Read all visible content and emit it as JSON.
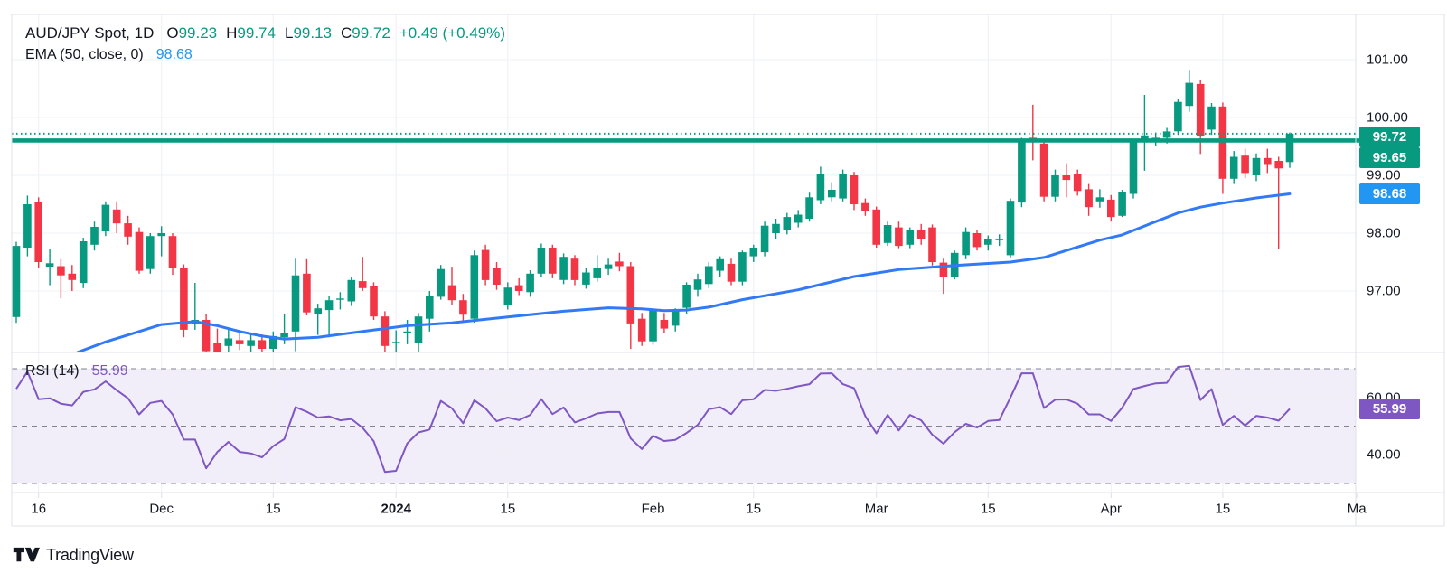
{
  "header": {
    "symbol_title": "AUD/JPY Spot, 1D",
    "ohlc": {
      "o_label": "O",
      "o": "99.23",
      "h_label": "H",
      "h": "99.74",
      "l_label": "L",
      "l": "99.13",
      "c_label": "C",
      "c": "99.72",
      "change": "+0.49 (+0.49%)"
    },
    "ema_label": "EMA (50, close, 0)",
    "ema_value": "98.68"
  },
  "rsi_legend": {
    "label": "RSI (14)",
    "value": "55.99"
  },
  "price_scale": {
    "badges": {
      "last": "99.72",
      "level": "99.65",
      "ema": "98.68"
    }
  },
  "rsi_scale": {
    "badge": "55.99"
  },
  "logo": {
    "text": "TradingView"
  },
  "colors": {
    "up": "#089981",
    "down": "#f23645",
    "ema_line": "#3179f5",
    "level_line": "#089981",
    "rsi_line": "#7e57c2",
    "grid": "#eef0f4",
    "border": "#dde0e7",
    "dashed": "#7f8493"
  },
  "chart_data": [
    {
      "type": "candlestick",
      "title": "AUD/JPY Spot, 1D",
      "up_color": "#089981",
      "down_color": "#f23645",
      "ema_color": "#3179f5",
      "ylim": [
        95.9,
        101.8
      ],
      "y_ticks": [
        {
          "v": 101,
          "label": "101.00"
        },
        {
          "v": 100,
          "label": "100.00"
        },
        {
          "v": 99,
          "label": "99.00"
        },
        {
          "v": 98,
          "label": "98.00"
        },
        {
          "v": 97,
          "label": "97.00"
        }
      ],
      "x_ticks": [
        {
          "i": 2,
          "label": "16"
        },
        {
          "i": 13,
          "label": "Dec"
        },
        {
          "i": 23,
          "label": "15"
        },
        {
          "i": 34,
          "label": "2024",
          "bold": true
        },
        {
          "i": 44,
          "label": "15"
        },
        {
          "i": 57,
          "label": "Feb"
        },
        {
          "i": 66,
          "label": "15"
        },
        {
          "i": 77,
          "label": "Mar"
        },
        {
          "i": 87,
          "label": "15"
        },
        {
          "i": 98,
          "label": "Apr"
        },
        {
          "i": 108,
          "label": "15"
        },
        {
          "i": 120,
          "label": "Ma"
        }
      ],
      "levels": [
        {
          "value": 99.72,
          "style": "dotted",
          "color": "#089981"
        },
        {
          "value": 99.65,
          "style": "solid",
          "color": "#089981"
        }
      ],
      "candles": [
        [
          96.55,
          97.85,
          96.45,
          97.78
        ],
        [
          97.75,
          98.65,
          97.6,
          98.5
        ],
        [
          98.54,
          98.62,
          97.4,
          97.5
        ],
        [
          97.42,
          97.72,
          97.1,
          97.48
        ],
        [
          97.43,
          97.55,
          96.87,
          97.27
        ],
        [
          97.3,
          97.45,
          97.0,
          97.19
        ],
        [
          97.14,
          97.92,
          97.05,
          97.86
        ],
        [
          97.8,
          98.2,
          97.7,
          98.11
        ],
        [
          98.03,
          98.55,
          97.95,
          98.49
        ],
        [
          98.41,
          98.55,
          98.0,
          98.17
        ],
        [
          98.17,
          98.3,
          97.8,
          97.94
        ],
        [
          98.02,
          98.1,
          97.3,
          97.35
        ],
        [
          97.38,
          98.0,
          97.3,
          97.95
        ],
        [
          97.95,
          98.12,
          97.6,
          98.0
        ],
        [
          97.95,
          98.0,
          97.28,
          97.4
        ],
        [
          97.4,
          97.46,
          96.2,
          96.33
        ],
        [
          96.43,
          97.14,
          96.33,
          96.5
        ],
        [
          96.5,
          96.6,
          95.88,
          95.96
        ],
        [
          96.1,
          96.35,
          95.85,
          95.95
        ],
        [
          96.05,
          96.35,
          95.92,
          96.18
        ],
        [
          96.15,
          96.3,
          95.98,
          96.08
        ],
        [
          96.05,
          96.26,
          95.94,
          96.15
        ],
        [
          96.15,
          96.25,
          95.88,
          96.0
        ],
        [
          96.0,
          96.3,
          95.9,
          96.22
        ],
        [
          96.2,
          96.6,
          96.08,
          96.28
        ],
        [
          96.3,
          97.56,
          95.96,
          97.27
        ],
        [
          97.3,
          97.55,
          96.58,
          96.63
        ],
        [
          96.6,
          96.78,
          96.24,
          96.7
        ],
        [
          96.67,
          96.92,
          96.2,
          96.84
        ],
        [
          96.85,
          96.98,
          96.68,
          96.87
        ],
        [
          96.82,
          97.25,
          96.74,
          97.19
        ],
        [
          97.17,
          97.59,
          97.0,
          97.05
        ],
        [
          97.08,
          97.15,
          96.5,
          96.56
        ],
        [
          96.56,
          96.65,
          95.9,
          96.05
        ],
        [
          96.1,
          96.32,
          95.88,
          96.12
        ],
        [
          96.28,
          96.5,
          96.08,
          96.3
        ],
        [
          96.1,
          96.62,
          95.95,
          96.56
        ],
        [
          96.52,
          97.0,
          96.3,
          96.92
        ],
        [
          96.9,
          97.45,
          96.85,
          97.38
        ],
        [
          97.1,
          97.42,
          96.75,
          96.84
        ],
        [
          96.84,
          96.95,
          96.48,
          96.59
        ],
        [
          96.52,
          97.7,
          96.45,
          97.62
        ],
        [
          97.71,
          97.8,
          97.1,
          97.19
        ],
        [
          97.4,
          97.5,
          97.02,
          97.11
        ],
        [
          96.76,
          97.15,
          96.68,
          97.06
        ],
        [
          97.1,
          97.22,
          96.93,
          97.0
        ],
        [
          96.98,
          97.36,
          96.9,
          97.3
        ],
        [
          97.3,
          97.82,
          97.24,
          97.75
        ],
        [
          97.75,
          97.8,
          97.22,
          97.3
        ],
        [
          97.19,
          97.65,
          97.12,
          97.59
        ],
        [
          97.56,
          97.62,
          97.1,
          97.19
        ],
        [
          97.11,
          97.4,
          97.04,
          97.32
        ],
        [
          97.22,
          97.62,
          97.16,
          97.4
        ],
        [
          97.38,
          97.56,
          97.28,
          97.46
        ],
        [
          97.51,
          97.66,
          97.34,
          97.43
        ],
        [
          97.43,
          97.5,
          96.0,
          96.44
        ],
        [
          96.52,
          96.62,
          96.05,
          96.13
        ],
        [
          96.13,
          96.7,
          96.07,
          96.67
        ],
        [
          96.5,
          96.62,
          96.28,
          96.35
        ],
        [
          96.4,
          96.7,
          96.3,
          96.65
        ],
        [
          96.71,
          97.15,
          96.6,
          97.11
        ],
        [
          97.02,
          97.3,
          96.9,
          97.2
        ],
        [
          97.12,
          97.5,
          97.05,
          97.43
        ],
        [
          97.35,
          97.6,
          97.25,
          97.55
        ],
        [
          97.47,
          97.56,
          97.1,
          97.16
        ],
        [
          97.16,
          97.7,
          97.1,
          97.67
        ],
        [
          97.6,
          97.8,
          97.5,
          97.75
        ],
        [
          97.67,
          98.2,
          97.6,
          98.13
        ],
        [
          98.0,
          98.25,
          97.9,
          98.16
        ],
        [
          98.05,
          98.35,
          97.98,
          98.28
        ],
        [
          98.18,
          98.4,
          98.1,
          98.32
        ],
        [
          98.25,
          98.7,
          98.2,
          98.62
        ],
        [
          98.57,
          99.15,
          98.5,
          99.02
        ],
        [
          98.62,
          98.88,
          98.55,
          98.75
        ],
        [
          98.6,
          99.1,
          98.55,
          99.03
        ],
        [
          99.0,
          99.06,
          98.4,
          98.5
        ],
        [
          98.52,
          98.6,
          98.3,
          98.38
        ],
        [
          98.41,
          98.46,
          97.75,
          97.8
        ],
        [
          97.83,
          98.2,
          97.78,
          98.14
        ],
        [
          98.1,
          98.2,
          97.74,
          97.78
        ],
        [
          97.8,
          98.1,
          97.74,
          98.05
        ],
        [
          98.05,
          98.16,
          97.8,
          97.9
        ],
        [
          98.1,
          98.15,
          97.44,
          97.5
        ],
        [
          97.49,
          97.56,
          96.95,
          97.25
        ],
        [
          97.25,
          97.7,
          97.2,
          97.66
        ],
        [
          97.62,
          98.1,
          97.55,
          98.02
        ],
        [
          98.0,
          98.06,
          97.7,
          97.76
        ],
        [
          97.8,
          97.96,
          97.7,
          97.9
        ],
        [
          97.88,
          97.98,
          97.78,
          97.9
        ],
        [
          97.62,
          98.6,
          97.58,
          98.56
        ],
        [
          98.53,
          99.65,
          98.45,
          99.6
        ],
        [
          99.65,
          100.22,
          99.26,
          99.58
        ],
        [
          99.55,
          99.62,
          98.55,
          98.63
        ],
        [
          98.63,
          99.1,
          98.55,
          99.0
        ],
        [
          99.0,
          99.21,
          98.62,
          98.92
        ],
        [
          99.03,
          99.1,
          98.65,
          98.73
        ],
        [
          98.76,
          98.85,
          98.3,
          98.45
        ],
        [
          98.55,
          98.76,
          98.44,
          98.62
        ],
        [
          98.58,
          98.66,
          98.2,
          98.28
        ],
        [
          98.3,
          98.75,
          98.28,
          98.71
        ],
        [
          98.68,
          99.62,
          98.6,
          99.57
        ],
        [
          99.57,
          100.39,
          99.08,
          99.69
        ],
        [
          99.6,
          99.74,
          99.5,
          99.65
        ],
        [
          99.65,
          99.82,
          99.55,
          99.76
        ],
        [
          99.76,
          100.32,
          99.7,
          100.27
        ],
        [
          100.2,
          100.81,
          100.1,
          100.6
        ],
        [
          100.58,
          100.65,
          99.37,
          99.68
        ],
        [
          99.79,
          100.25,
          99.7,
          100.19
        ],
        [
          100.19,
          100.26,
          98.68,
          98.94
        ],
        [
          98.94,
          99.42,
          98.85,
          99.32
        ],
        [
          99.34,
          99.46,
          98.95,
          99.04
        ],
        [
          99.0,
          99.38,
          98.9,
          99.3
        ],
        [
          99.3,
          99.46,
          99.04,
          99.18
        ],
        [
          99.25,
          99.32,
          97.73,
          99.12
        ],
        [
          99.23,
          99.74,
          99.13,
          99.72
        ]
      ],
      "ema_name": "EMA (50, close, 0)",
      "ema_points": [
        [
          5.5,
          95.94
        ],
        [
          8,
          96.12
        ],
        [
          11,
          96.3
        ],
        [
          13,
          96.42
        ],
        [
          16,
          96.47
        ],
        [
          18,
          96.4
        ],
        [
          20,
          96.3
        ],
        [
          22,
          96.22
        ],
        [
          24,
          96.17
        ],
        [
          27,
          96.2
        ],
        [
          31,
          96.3
        ],
        [
          35,
          96.4
        ],
        [
          39,
          96.45
        ],
        [
          44,
          96.55
        ],
        [
          49,
          96.65
        ],
        [
          53,
          96.71
        ],
        [
          56,
          96.69
        ],
        [
          58,
          96.66
        ],
        [
          60,
          96.67
        ],
        [
          62,
          96.72
        ],
        [
          65,
          96.85
        ],
        [
          70,
          97.02
        ],
        [
          75,
          97.25
        ],
        [
          79,
          97.37
        ],
        [
          84,
          97.44
        ],
        [
          89,
          97.5
        ],
        [
          92,
          97.58
        ],
        [
          94,
          97.7
        ],
        [
          97,
          97.88
        ],
        [
          99,
          97.97
        ],
        [
          102,
          98.2
        ],
        [
          104,
          98.35
        ],
        [
          106,
          98.45
        ],
        [
          108,
          98.52
        ],
        [
          111,
          98.61
        ],
        [
          114,
          98.68
        ]
      ]
    },
    {
      "type": "line",
      "name": "RSI (14)",
      "color": "#7e57c2",
      "band": [
        30,
        70
      ],
      "band_fill": "rgba(126,87,194,0.10)",
      "dashed_levels": [
        70,
        50,
        30
      ],
      "ylim": [
        27,
        73
      ],
      "y_ticks": [
        {
          "v": 60,
          "label": "60.00"
        },
        {
          "v": 40,
          "label": "40.00"
        }
      ],
      "values": [
        63,
        69,
        59.4,
        59.7,
        57.8,
        57.2,
        61.9,
        62.8,
        65.6,
        62.5,
        59.7,
        54.1,
        58.1,
        58.8,
        54.1,
        45.3,
        45.3,
        35.3,
        41,
        44.5,
        41,
        40.5,
        39.1,
        43,
        45.5,
        56.6,
        55,
        53,
        53.4,
        52,
        52.5,
        49.4,
        44.7,
        34,
        34.4,
        44,
        47.8,
        48.8,
        58.8,
        56.2,
        51,
        59,
        56.2,
        51.7,
        53,
        52.1,
        53.9,
        59.4,
        54.2,
        56.5,
        51.3,
        52.7,
        54.4,
        54.9,
        54.9,
        45.7,
        42,
        46.6,
        44.8,
        45.2,
        47.6,
        50.4,
        55.9,
        56.6,
        54.2,
        59,
        59.4,
        62.6,
        62.3,
        63,
        63.9,
        64.6,
        68.3,
        68.4,
        64.6,
        63.2,
        53.5,
        47.5,
        53.9,
        48.5,
        53.9,
        52,
        47,
        43.9,
        47.9,
        50.8,
        49.5,
        51.8,
        52.1,
        60,
        68.4,
        68.4,
        56.3,
        59.2,
        59.3,
        57.8,
        54.1,
        54.1,
        51.8,
        56.4,
        62.9,
        64,
        64.9,
        65.1,
        70.6,
        71,
        59.1,
        62.9,
        50.4,
        53.6,
        50.2,
        53.6,
        53,
        51.9,
        56
      ]
    }
  ]
}
